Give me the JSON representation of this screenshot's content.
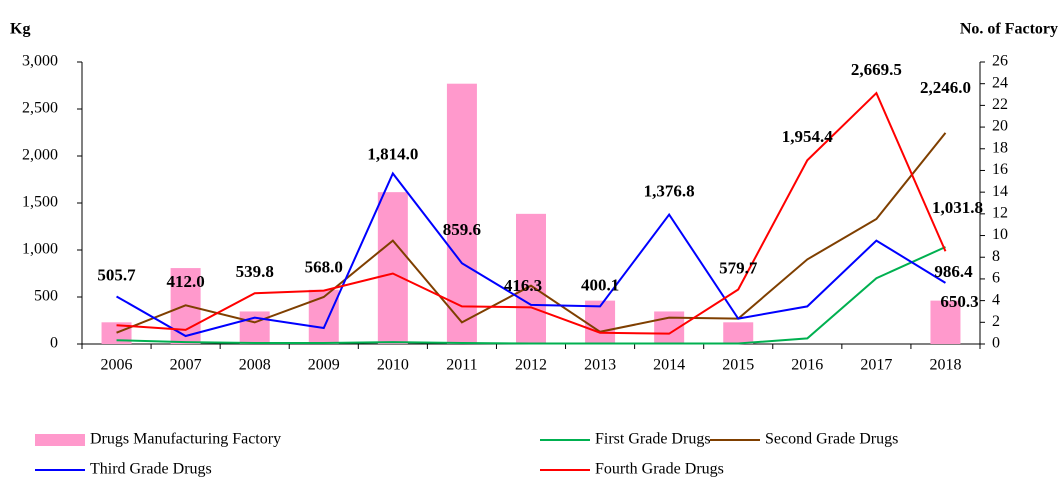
{
  "chart_data": {
    "type": "bar-line",
    "ylabel": "Kg",
    "y2label": "No. of Factory",
    "categories": [
      "2006",
      "2007",
      "2008",
      "2009",
      "2010",
      "2011",
      "2012",
      "2013",
      "2014",
      "2015",
      "2016",
      "2017",
      "2018"
    ],
    "ylim": [
      0,
      3000
    ],
    "yticks": [
      0,
      {
        "value": 500,
        "label": "500"
      },
      {
        "value": 1000,
        "label": "1,000"
      },
      {
        "value": 1500,
        "label": "1,500"
      },
      {
        "value": 2000,
        "label": "2,000"
      },
      {
        "value": 2500,
        "label": "2,500"
      },
      {
        "value": 3000,
        "label": "3,000"
      }
    ],
    "y2lim": [
      0,
      26
    ],
    "y2ticks": [
      0,
      2,
      4,
      6,
      8,
      10,
      12,
      14,
      16,
      18,
      20,
      22,
      24,
      26
    ],
    "series": [
      {
        "name": "Drugs Manufacturing Factory",
        "type": "bar",
        "axis": "y2",
        "color": "#ff99cc",
        "values": [
          2,
          7,
          3,
          5,
          14,
          24,
          12,
          4,
          3,
          2,
          0,
          0,
          4
        ]
      },
      {
        "name": "First Grade Drugs",
        "type": "line",
        "color": "#00b050",
        "values": [
          40,
          20,
          10,
          10,
          20,
          10,
          5,
          5,
          5,
          5,
          60,
          700,
          1031.8
        ],
        "value_labels": [
          null,
          null,
          null,
          null,
          null,
          null,
          null,
          null,
          null,
          null,
          null,
          null,
          "1,031.8"
        ]
      },
      {
        "name": "Second Grade Drugs",
        "type": "line",
        "color": "#7f3f00",
        "values": [
          120,
          412.0,
          230,
          500,
          1100,
          230,
          620,
          130,
          280,
          270,
          900,
          1330,
          2246.0
        ],
        "value_labels": [
          null,
          "412.0",
          null,
          null,
          null,
          null,
          null,
          null,
          null,
          null,
          null,
          null,
          "2,246.0"
        ]
      },
      {
        "name": "Third Grade Drugs",
        "type": "line",
        "color": "#0000ff",
        "values": [
          505.7,
          85,
          280,
          170,
          1814.0,
          859.6,
          416.3,
          400.1,
          1376.8,
          270,
          400,
          1100,
          650.3
        ],
        "value_labels": [
          "505.7",
          null,
          null,
          null,
          "1,814.0",
          "859.6",
          "416.3",
          "400.1",
          "1,376.8",
          null,
          null,
          null,
          "650.3"
        ]
      },
      {
        "name": "Fourth Grade Drugs",
        "type": "line",
        "color": "#ff0000",
        "values": [
          200,
          150,
          539.8,
          568.0,
          750,
          400,
          390,
          120,
          110,
          579.7,
          1954.4,
          2669.5,
          986.4
        ],
        "value_labels": [
          null,
          null,
          "539.8",
          "568.0",
          null,
          null,
          null,
          null,
          null,
          "579.7",
          "1,954.4",
          "2,669.5",
          "986.4"
        ]
      }
    ]
  }
}
